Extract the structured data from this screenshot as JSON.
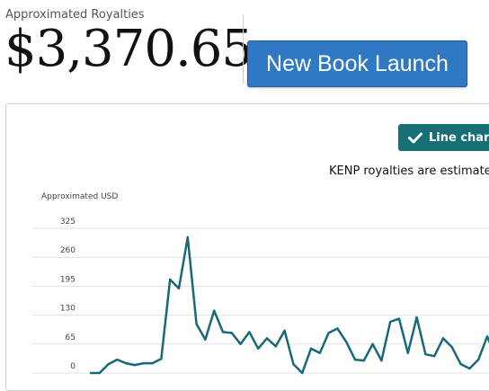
{
  "header": {
    "royalty_label": "Approximated Royalties",
    "royalty_amount": "$3,370.65",
    "launch_button": "New Book Launch"
  },
  "toolbar": {
    "chart_toggle_label": "Line chart",
    "chart_toggle_icon": "check-icon",
    "note": "KENP royalties are estimated f"
  },
  "colors": {
    "accent_blue": "#2f79c4",
    "toggle_teal": "#156f74",
    "line_color": "#17697a"
  },
  "chart_data": {
    "type": "line",
    "ylabel": "Approximated USD",
    "yticks": [
      0,
      65,
      130,
      195,
      260,
      325
    ],
    "ylim": [
      0,
      325
    ],
    "grid": true,
    "series": [
      {
        "values": [
          0,
          0,
          20,
          30,
          22,
          18,
          22,
          22,
          32,
          210,
          190,
          305,
          110,
          75,
          140,
          92,
          90,
          65,
          92,
          55,
          78,
          60,
          95,
          20,
          0,
          55,
          45,
          90,
          100,
          70,
          30,
          28,
          65,
          28,
          115,
          122,
          45,
          125,
          42,
          38,
          78,
          58,
          20,
          10,
          30,
          82,
          35
        ]
      }
    ]
  }
}
